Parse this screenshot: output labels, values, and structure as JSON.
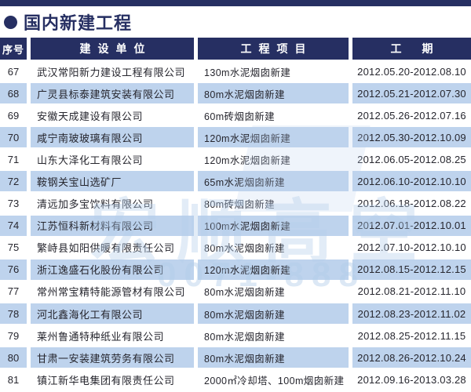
{
  "page": {
    "title": "国内新建工程"
  },
  "table": {
    "headers": [
      "序号",
      "建设单位",
      "工程项目",
      "工期"
    ],
    "rows": [
      {
        "no": "67",
        "company": "武汉常阳新力建设工程有限公司",
        "project": "130m水泥烟囱新建",
        "period": "2012.05.20-2012.08.10"
      },
      {
        "no": "68",
        "company": "广灵县标泰建筑安装有限公司",
        "project": "80m水泥烟囱新建",
        "period": "2012.05.21-2012.07.30"
      },
      {
        "no": "69",
        "company": "安徽天成建设有限公司",
        "project": "60m砖烟囱新建",
        "period": "2012.05.26-2012.07.16"
      },
      {
        "no": "70",
        "company": "咸宁南玻玻璃有限公司",
        "project": "120m水泥烟囱新建",
        "period": "2012.05.30-2012.10.09"
      },
      {
        "no": "71",
        "company": "山东大泽化工有限公司",
        "project": "120m水泥烟囱新建",
        "period": "2012.06.05-2012.08.25"
      },
      {
        "no": "72",
        "company": "鞍钢关宝山选矿厂",
        "project": "65m水泥烟囱新建",
        "period": "2012.06.10-2012.10.10"
      },
      {
        "no": "73",
        "company": "清远加多宝饮料有限公司",
        "project": "80m砖烟囱新建",
        "period": "2012.06.18-2012.08.22"
      },
      {
        "no": "74",
        "company": "江苏恒科新材料有限公司",
        "project": "100m水泥烟囱新建",
        "period": "2012.07.01-2012.10.01"
      },
      {
        "no": "75",
        "company": "繁峙县如阳供暖有限责任公司",
        "project": "80m水泥烟囱新建",
        "period": "2012.07.10-2012.10.10"
      },
      {
        "no": "76",
        "company": "浙江逸盛石化股份有限公司",
        "project": "120m水泥烟囱新建",
        "period": "2012.08.15-2012.12.15"
      },
      {
        "no": "77",
        "company": "常州常宝精特能源管材有限公司",
        "project": "80m水泥烟囱新建",
        "period": "2012.08.21-2012.11.10"
      },
      {
        "no": "78",
        "company": "河北鑫海化工有限公司",
        "project": "80m水泥烟囱新建",
        "period": "2012.08.23-2012.11.02"
      },
      {
        "no": "79",
        "company": "莱州鲁通特种纸业有限公司",
        "project": "80m水泥烟囱新建",
        "period": "2012.08.25-2012.11.15"
      },
      {
        "no": "80",
        "company": "甘肃一安装建筑劳务有限公司",
        "project": "80m水泥烟囱新建",
        "period": "2012.08.26-2012.10.24"
      },
      {
        "no": "81",
        "company": "镇江新华电集团有限责任公司",
        "project": "2000㎡冷却塔、100m烟囱新建",
        "period": "2012.09.16-2013.03.28"
      }
    ]
  },
  "watermark": {
    "chars": "宏顺高空",
    "phone": "0071-888"
  },
  "colors": {
    "navy": "#262f62",
    "row_blue": "#bed3ed",
    "text": "#26262e",
    "watermark_blue": "#b2cde9"
  }
}
